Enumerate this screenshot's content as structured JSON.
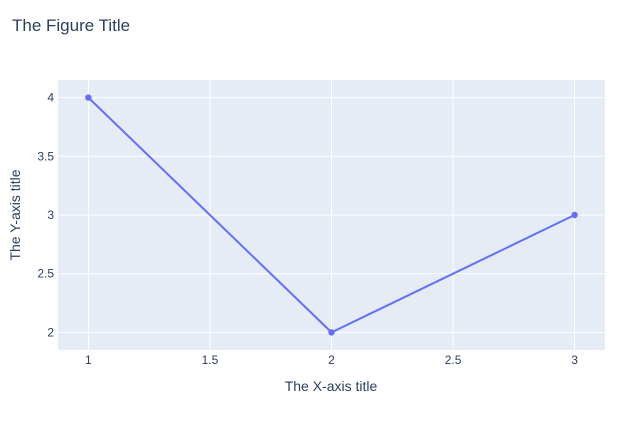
{
  "chart_data": {
    "type": "line",
    "title": "The Figure Title",
    "xlabel": "The X-axis title",
    "ylabel": "The Y-axis title",
    "xlim": [
      0.875,
      3.125
    ],
    "ylim": [
      1.85,
      4.15
    ],
    "x_ticks": [
      1,
      1.5,
      2,
      2.5,
      3
    ],
    "x_tick_labels": [
      "1",
      "1.5",
      "2",
      "2.5",
      "3"
    ],
    "y_ticks": [
      2,
      2.5,
      3,
      3.5,
      4
    ],
    "y_tick_labels": [
      "2",
      "2.5",
      "3",
      "3.5",
      "4"
    ],
    "grid": true,
    "legend": "none",
    "series": [
      {
        "x": [
          1,
          2,
          3
        ],
        "y": [
          4,
          2,
          3
        ],
        "mode": "lines+markers"
      }
    ]
  },
  "colors": {
    "plot_background": "#e5ecf6",
    "grid": "#ffffff",
    "series": "#636efa",
    "text": "#2a3f5f"
  }
}
